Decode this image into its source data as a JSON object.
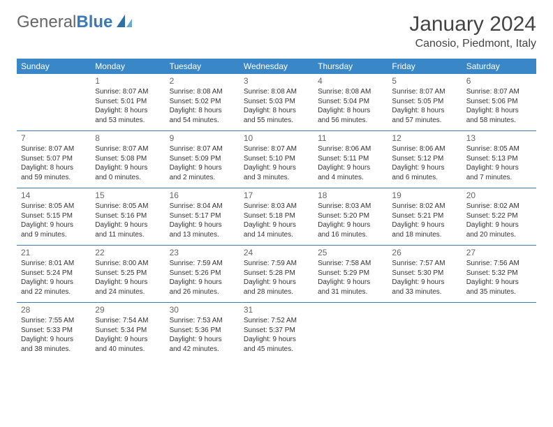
{
  "logo": {
    "text_a": "General",
    "text_b": "Blue"
  },
  "title": "January 2024",
  "location": "Canosio, Piedmont, Italy",
  "colors": {
    "header_bg": "#3a87c8",
    "header_fg": "#ffffff",
    "rule": "#3a7ab8",
    "text": "#333333",
    "logo_blue": "#3a7ab8"
  },
  "weekdays": [
    "Sunday",
    "Monday",
    "Tuesday",
    "Wednesday",
    "Thursday",
    "Friday",
    "Saturday"
  ],
  "weeks": [
    [
      null,
      {
        "n": "1",
        "sr": "Sunrise: 8:07 AM",
        "ss": "Sunset: 5:01 PM",
        "d1": "Daylight: 8 hours",
        "d2": "and 53 minutes."
      },
      {
        "n": "2",
        "sr": "Sunrise: 8:08 AM",
        "ss": "Sunset: 5:02 PM",
        "d1": "Daylight: 8 hours",
        "d2": "and 54 minutes."
      },
      {
        "n": "3",
        "sr": "Sunrise: 8:08 AM",
        "ss": "Sunset: 5:03 PM",
        "d1": "Daylight: 8 hours",
        "d2": "and 55 minutes."
      },
      {
        "n": "4",
        "sr": "Sunrise: 8:08 AM",
        "ss": "Sunset: 5:04 PM",
        "d1": "Daylight: 8 hours",
        "d2": "and 56 minutes."
      },
      {
        "n": "5",
        "sr": "Sunrise: 8:07 AM",
        "ss": "Sunset: 5:05 PM",
        "d1": "Daylight: 8 hours",
        "d2": "and 57 minutes."
      },
      {
        "n": "6",
        "sr": "Sunrise: 8:07 AM",
        "ss": "Sunset: 5:06 PM",
        "d1": "Daylight: 8 hours",
        "d2": "and 58 minutes."
      }
    ],
    [
      {
        "n": "7",
        "sr": "Sunrise: 8:07 AM",
        "ss": "Sunset: 5:07 PM",
        "d1": "Daylight: 8 hours",
        "d2": "and 59 minutes."
      },
      {
        "n": "8",
        "sr": "Sunrise: 8:07 AM",
        "ss": "Sunset: 5:08 PM",
        "d1": "Daylight: 9 hours",
        "d2": "and 0 minutes."
      },
      {
        "n": "9",
        "sr": "Sunrise: 8:07 AM",
        "ss": "Sunset: 5:09 PM",
        "d1": "Daylight: 9 hours",
        "d2": "and 2 minutes."
      },
      {
        "n": "10",
        "sr": "Sunrise: 8:07 AM",
        "ss": "Sunset: 5:10 PM",
        "d1": "Daylight: 9 hours",
        "d2": "and 3 minutes."
      },
      {
        "n": "11",
        "sr": "Sunrise: 8:06 AM",
        "ss": "Sunset: 5:11 PM",
        "d1": "Daylight: 9 hours",
        "d2": "and 4 minutes."
      },
      {
        "n": "12",
        "sr": "Sunrise: 8:06 AM",
        "ss": "Sunset: 5:12 PM",
        "d1": "Daylight: 9 hours",
        "d2": "and 6 minutes."
      },
      {
        "n": "13",
        "sr": "Sunrise: 8:05 AM",
        "ss": "Sunset: 5:13 PM",
        "d1": "Daylight: 9 hours",
        "d2": "and 7 minutes."
      }
    ],
    [
      {
        "n": "14",
        "sr": "Sunrise: 8:05 AM",
        "ss": "Sunset: 5:15 PM",
        "d1": "Daylight: 9 hours",
        "d2": "and 9 minutes."
      },
      {
        "n": "15",
        "sr": "Sunrise: 8:05 AM",
        "ss": "Sunset: 5:16 PM",
        "d1": "Daylight: 9 hours",
        "d2": "and 11 minutes."
      },
      {
        "n": "16",
        "sr": "Sunrise: 8:04 AM",
        "ss": "Sunset: 5:17 PM",
        "d1": "Daylight: 9 hours",
        "d2": "and 13 minutes."
      },
      {
        "n": "17",
        "sr": "Sunrise: 8:03 AM",
        "ss": "Sunset: 5:18 PM",
        "d1": "Daylight: 9 hours",
        "d2": "and 14 minutes."
      },
      {
        "n": "18",
        "sr": "Sunrise: 8:03 AM",
        "ss": "Sunset: 5:20 PM",
        "d1": "Daylight: 9 hours",
        "d2": "and 16 minutes."
      },
      {
        "n": "19",
        "sr": "Sunrise: 8:02 AM",
        "ss": "Sunset: 5:21 PM",
        "d1": "Daylight: 9 hours",
        "d2": "and 18 minutes."
      },
      {
        "n": "20",
        "sr": "Sunrise: 8:02 AM",
        "ss": "Sunset: 5:22 PM",
        "d1": "Daylight: 9 hours",
        "d2": "and 20 minutes."
      }
    ],
    [
      {
        "n": "21",
        "sr": "Sunrise: 8:01 AM",
        "ss": "Sunset: 5:24 PM",
        "d1": "Daylight: 9 hours",
        "d2": "and 22 minutes."
      },
      {
        "n": "22",
        "sr": "Sunrise: 8:00 AM",
        "ss": "Sunset: 5:25 PM",
        "d1": "Daylight: 9 hours",
        "d2": "and 24 minutes."
      },
      {
        "n": "23",
        "sr": "Sunrise: 7:59 AM",
        "ss": "Sunset: 5:26 PM",
        "d1": "Daylight: 9 hours",
        "d2": "and 26 minutes."
      },
      {
        "n": "24",
        "sr": "Sunrise: 7:59 AM",
        "ss": "Sunset: 5:28 PM",
        "d1": "Daylight: 9 hours",
        "d2": "and 28 minutes."
      },
      {
        "n": "25",
        "sr": "Sunrise: 7:58 AM",
        "ss": "Sunset: 5:29 PM",
        "d1": "Daylight: 9 hours",
        "d2": "and 31 minutes."
      },
      {
        "n": "26",
        "sr": "Sunrise: 7:57 AM",
        "ss": "Sunset: 5:30 PM",
        "d1": "Daylight: 9 hours",
        "d2": "and 33 minutes."
      },
      {
        "n": "27",
        "sr": "Sunrise: 7:56 AM",
        "ss": "Sunset: 5:32 PM",
        "d1": "Daylight: 9 hours",
        "d2": "and 35 minutes."
      }
    ],
    [
      {
        "n": "28",
        "sr": "Sunrise: 7:55 AM",
        "ss": "Sunset: 5:33 PM",
        "d1": "Daylight: 9 hours",
        "d2": "and 38 minutes."
      },
      {
        "n": "29",
        "sr": "Sunrise: 7:54 AM",
        "ss": "Sunset: 5:34 PM",
        "d1": "Daylight: 9 hours",
        "d2": "and 40 minutes."
      },
      {
        "n": "30",
        "sr": "Sunrise: 7:53 AM",
        "ss": "Sunset: 5:36 PM",
        "d1": "Daylight: 9 hours",
        "d2": "and 42 minutes."
      },
      {
        "n": "31",
        "sr": "Sunrise: 7:52 AM",
        "ss": "Sunset: 5:37 PM",
        "d1": "Daylight: 9 hours",
        "d2": "and 45 minutes."
      },
      null,
      null,
      null
    ]
  ]
}
